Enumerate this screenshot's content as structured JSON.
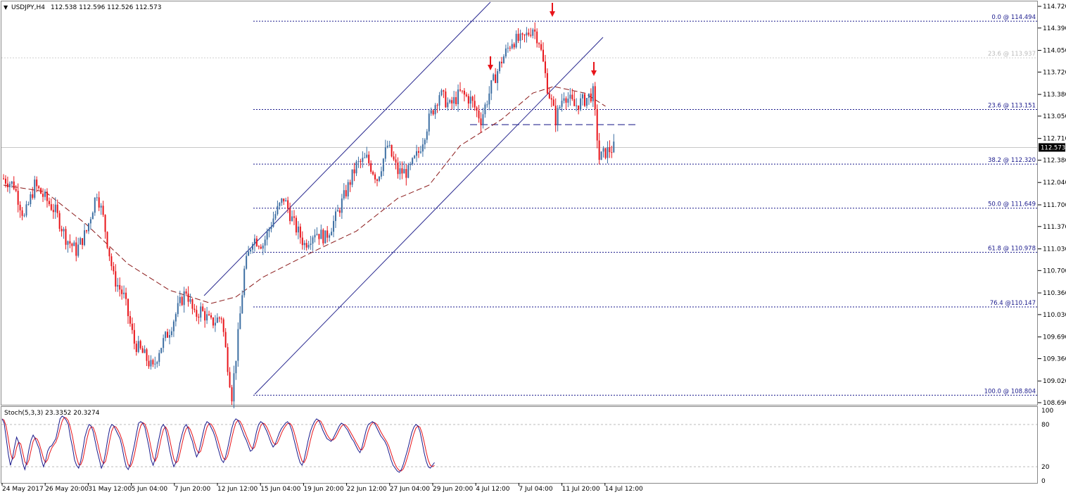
{
  "header": {
    "symbol": "USDJPY,H4",
    "ohlc": "112.538 112.596 112.526 112.573"
  },
  "indicator": {
    "label": "Stoch(5,3,3) 23.3352 20.3274",
    "levels": [
      "100",
      "80",
      "20",
      "0"
    ]
  },
  "colors": {
    "bull": "#3d6fa3",
    "bear": "#e8141a",
    "fib": "#1a1a8c",
    "channel": "#2a2a90",
    "ma": "#8b1a1a",
    "arrow": "#e8141a",
    "stoch_main": "#1a1a8c",
    "stoch_signal": "#e8141a"
  },
  "chart_data": {
    "type": "candlestick",
    "ylim": [
      108.52,
      114.8
    ],
    "y_ticks": [
      "114.720",
      "114.390",
      "114.050",
      "113.720",
      "113.380",
      "113.050",
      "112.710",
      "112.380",
      "112.040",
      "111.700",
      "111.370",
      "111.030",
      "110.700",
      "110.360",
      "110.030",
      "109.690",
      "109.360",
      "109.020",
      "108.690"
    ],
    "current_price": "112.573",
    "x_ticks": [
      "24 May 2017",
      "26 May 20:00",
      "31 May 12:00",
      "5 Jun 04:00",
      "7 Jun 20:00",
      "12 Jun 12:00",
      "15 Jun 04:00",
      "19 Jun 20:00",
      "22 Jun 12:00",
      "27 Jun 04:00",
      "29 Jun 20:00",
      "4 Jul 12:00",
      "7 Jul 04:00",
      "11 Jul 20:00",
      "14 Jul 12:00"
    ],
    "fib_levels": [
      {
        "label": "0.0 @ 114.494",
        "price": 114.494
      },
      {
        "label": "23.6 @ 113.151",
        "price": 113.151
      },
      {
        "label": "38.2 @ 112.320",
        "price": 112.32
      },
      {
        "label": "50.0 @ 111.649",
        "price": 111.649
      },
      {
        "label": "61.8 @ 110.978",
        "price": 110.978
      },
      {
        "label": "76.4 @110.147",
        "price": 110.147
      },
      {
        "label": "100.0 @ 108.804",
        "price": 108.804
      }
    ],
    "ghost_level": {
      "label": "23.6 @ 113.937",
      "price": 113.937
    },
    "neckline": 112.92,
    "close_path": [
      [
        0,
        112.1
      ],
      [
        5,
        112.0
      ],
      [
        10,
        111.5
      ],
      [
        15,
        112.0
      ],
      [
        20,
        111.8
      ],
      [
        25,
        111.6
      ],
      [
        30,
        111.2
      ],
      [
        35,
        111.0
      ],
      [
        40,
        111.3
      ],
      [
        45,
        111.9
      ],
      [
        48,
        111.5
      ],
      [
        53,
        110.6
      ],
      [
        58,
        110.3
      ],
      [
        63,
        109.6
      ],
      [
        68,
        109.4
      ],
      [
        72,
        109.2
      ],
      [
        75,
        109.5
      ],
      [
        80,
        109.8
      ],
      [
        85,
        110.2
      ],
      [
        88,
        110.4
      ],
      [
        92,
        110.0
      ],
      [
        95,
        110.1
      ],
      [
        100,
        109.9
      ],
      [
        105,
        110.0
      ],
      [
        107,
        109.5
      ],
      [
        110,
        108.8
      ],
      [
        113,
        109.7
      ],
      [
        116,
        110.7
      ],
      [
        120,
        111.2
      ],
      [
        125,
        111.1
      ],
      [
        130,
        111.5
      ],
      [
        135,
        111.8
      ],
      [
        140,
        111.4
      ],
      [
        145,
        111.1
      ],
      [
        150,
        111.3
      ],
      [
        155,
        111.2
      ],
      [
        160,
        111.5
      ],
      [
        165,
        111.9
      ],
      [
        170,
        112.3
      ],
      [
        175,
        112.4
      ],
      [
        180,
        112.1
      ],
      [
        185,
        112.6
      ],
      [
        190,
        112.2
      ],
      [
        195,
        112.2
      ],
      [
        200,
        112.5
      ],
      [
        205,
        113.0
      ],
      [
        210,
        113.4
      ],
      [
        215,
        113.2
      ],
      [
        220,
        113.4
      ],
      [
        225,
        113.3
      ],
      [
        230,
        113.0
      ],
      [
        235,
        113.5
      ],
      [
        240,
        113.9
      ],
      [
        245,
        114.2
      ],
      [
        250,
        114.2
      ],
      [
        255,
        114.4
      ],
      [
        258,
        114.2
      ],
      [
        262,
        113.5
      ],
      [
        266,
        113.0
      ],
      [
        270,
        113.4
      ],
      [
        275,
        113.2
      ],
      [
        280,
        113.3
      ],
      [
        284,
        113.4
      ],
      [
        287,
        112.4
      ],
      [
        290,
        112.5
      ],
      [
        294,
        112.57
      ]
    ],
    "ma_path": [
      [
        0,
        112.0
      ],
      [
        20,
        111.9
      ],
      [
        40,
        111.4
      ],
      [
        60,
        110.8
      ],
      [
        80,
        110.4
      ],
      [
        100,
        110.2
      ],
      [
        112,
        110.3
      ],
      [
        125,
        110.6
      ],
      [
        150,
        111.0
      ],
      [
        170,
        111.3
      ],
      [
        190,
        111.8
      ],
      [
        205,
        112.0
      ],
      [
        220,
        112.6
      ],
      [
        240,
        113.0
      ],
      [
        255,
        113.4
      ],
      [
        265,
        113.5
      ],
      [
        280,
        113.4
      ],
      [
        290,
        113.2
      ]
    ],
    "stoch": {
      "ylim": [
        0,
        100
      ],
      "k_x_step": 4,
      "k": [
        88,
        82,
        60,
        38,
        22,
        32,
        48,
        62,
        55,
        40,
        25,
        16,
        28,
        45,
        58,
        65,
        60,
        52,
        45,
        30,
        20,
        28,
        42,
        48,
        50,
        55,
        60,
        74,
        88,
        92,
        90,
        86,
        80,
        62,
        48,
        30,
        22,
        18,
        28,
        44,
        62,
        72,
        80,
        78,
        70,
        56,
        42,
        30,
        18,
        25,
        40,
        58,
        74,
        80,
        78,
        72,
        66,
        60,
        48,
        32,
        20,
        16,
        24,
        38,
        52,
        68,
        82,
        84,
        82,
        76,
        62,
        48,
        30,
        22,
        32,
        48,
        62,
        76,
        80,
        74,
        60,
        44,
        30,
        20,
        26,
        38,
        54,
        66,
        76,
        80,
        74,
        64,
        56,
        44,
        34,
        40,
        52,
        66,
        78,
        84,
        82,
        76,
        70,
        62,
        50,
        40,
        30,
        26,
        34,
        46,
        60,
        74,
        84,
        88,
        86,
        80,
        72,
        64,
        58,
        50,
        42,
        44,
        56,
        70,
        80,
        84,
        82,
        76,
        70,
        62,
        54,
        48,
        52,
        60,
        68,
        74,
        78,
        82,
        84,
        80,
        72,
        60,
        48,
        36,
        26,
        22,
        30,
        44,
        58,
        70,
        78,
        84,
        88,
        86,
        80,
        72,
        66,
        60,
        58,
        56,
        60,
        66,
        72,
        78,
        82,
        80,
        76,
        72,
        66,
        60,
        56,
        50,
        44,
        40,
        48,
        60,
        72,
        80,
        82,
        84,
        82,
        76,
        70,
        64,
        60,
        56,
        50,
        40,
        30,
        22,
        18,
        14,
        12,
        16,
        24,
        34,
        44,
        56,
        68,
        76,
        80,
        78,
        70,
        56,
        40,
        28,
        20,
        18,
        22,
        26
      ]
    }
  }
}
